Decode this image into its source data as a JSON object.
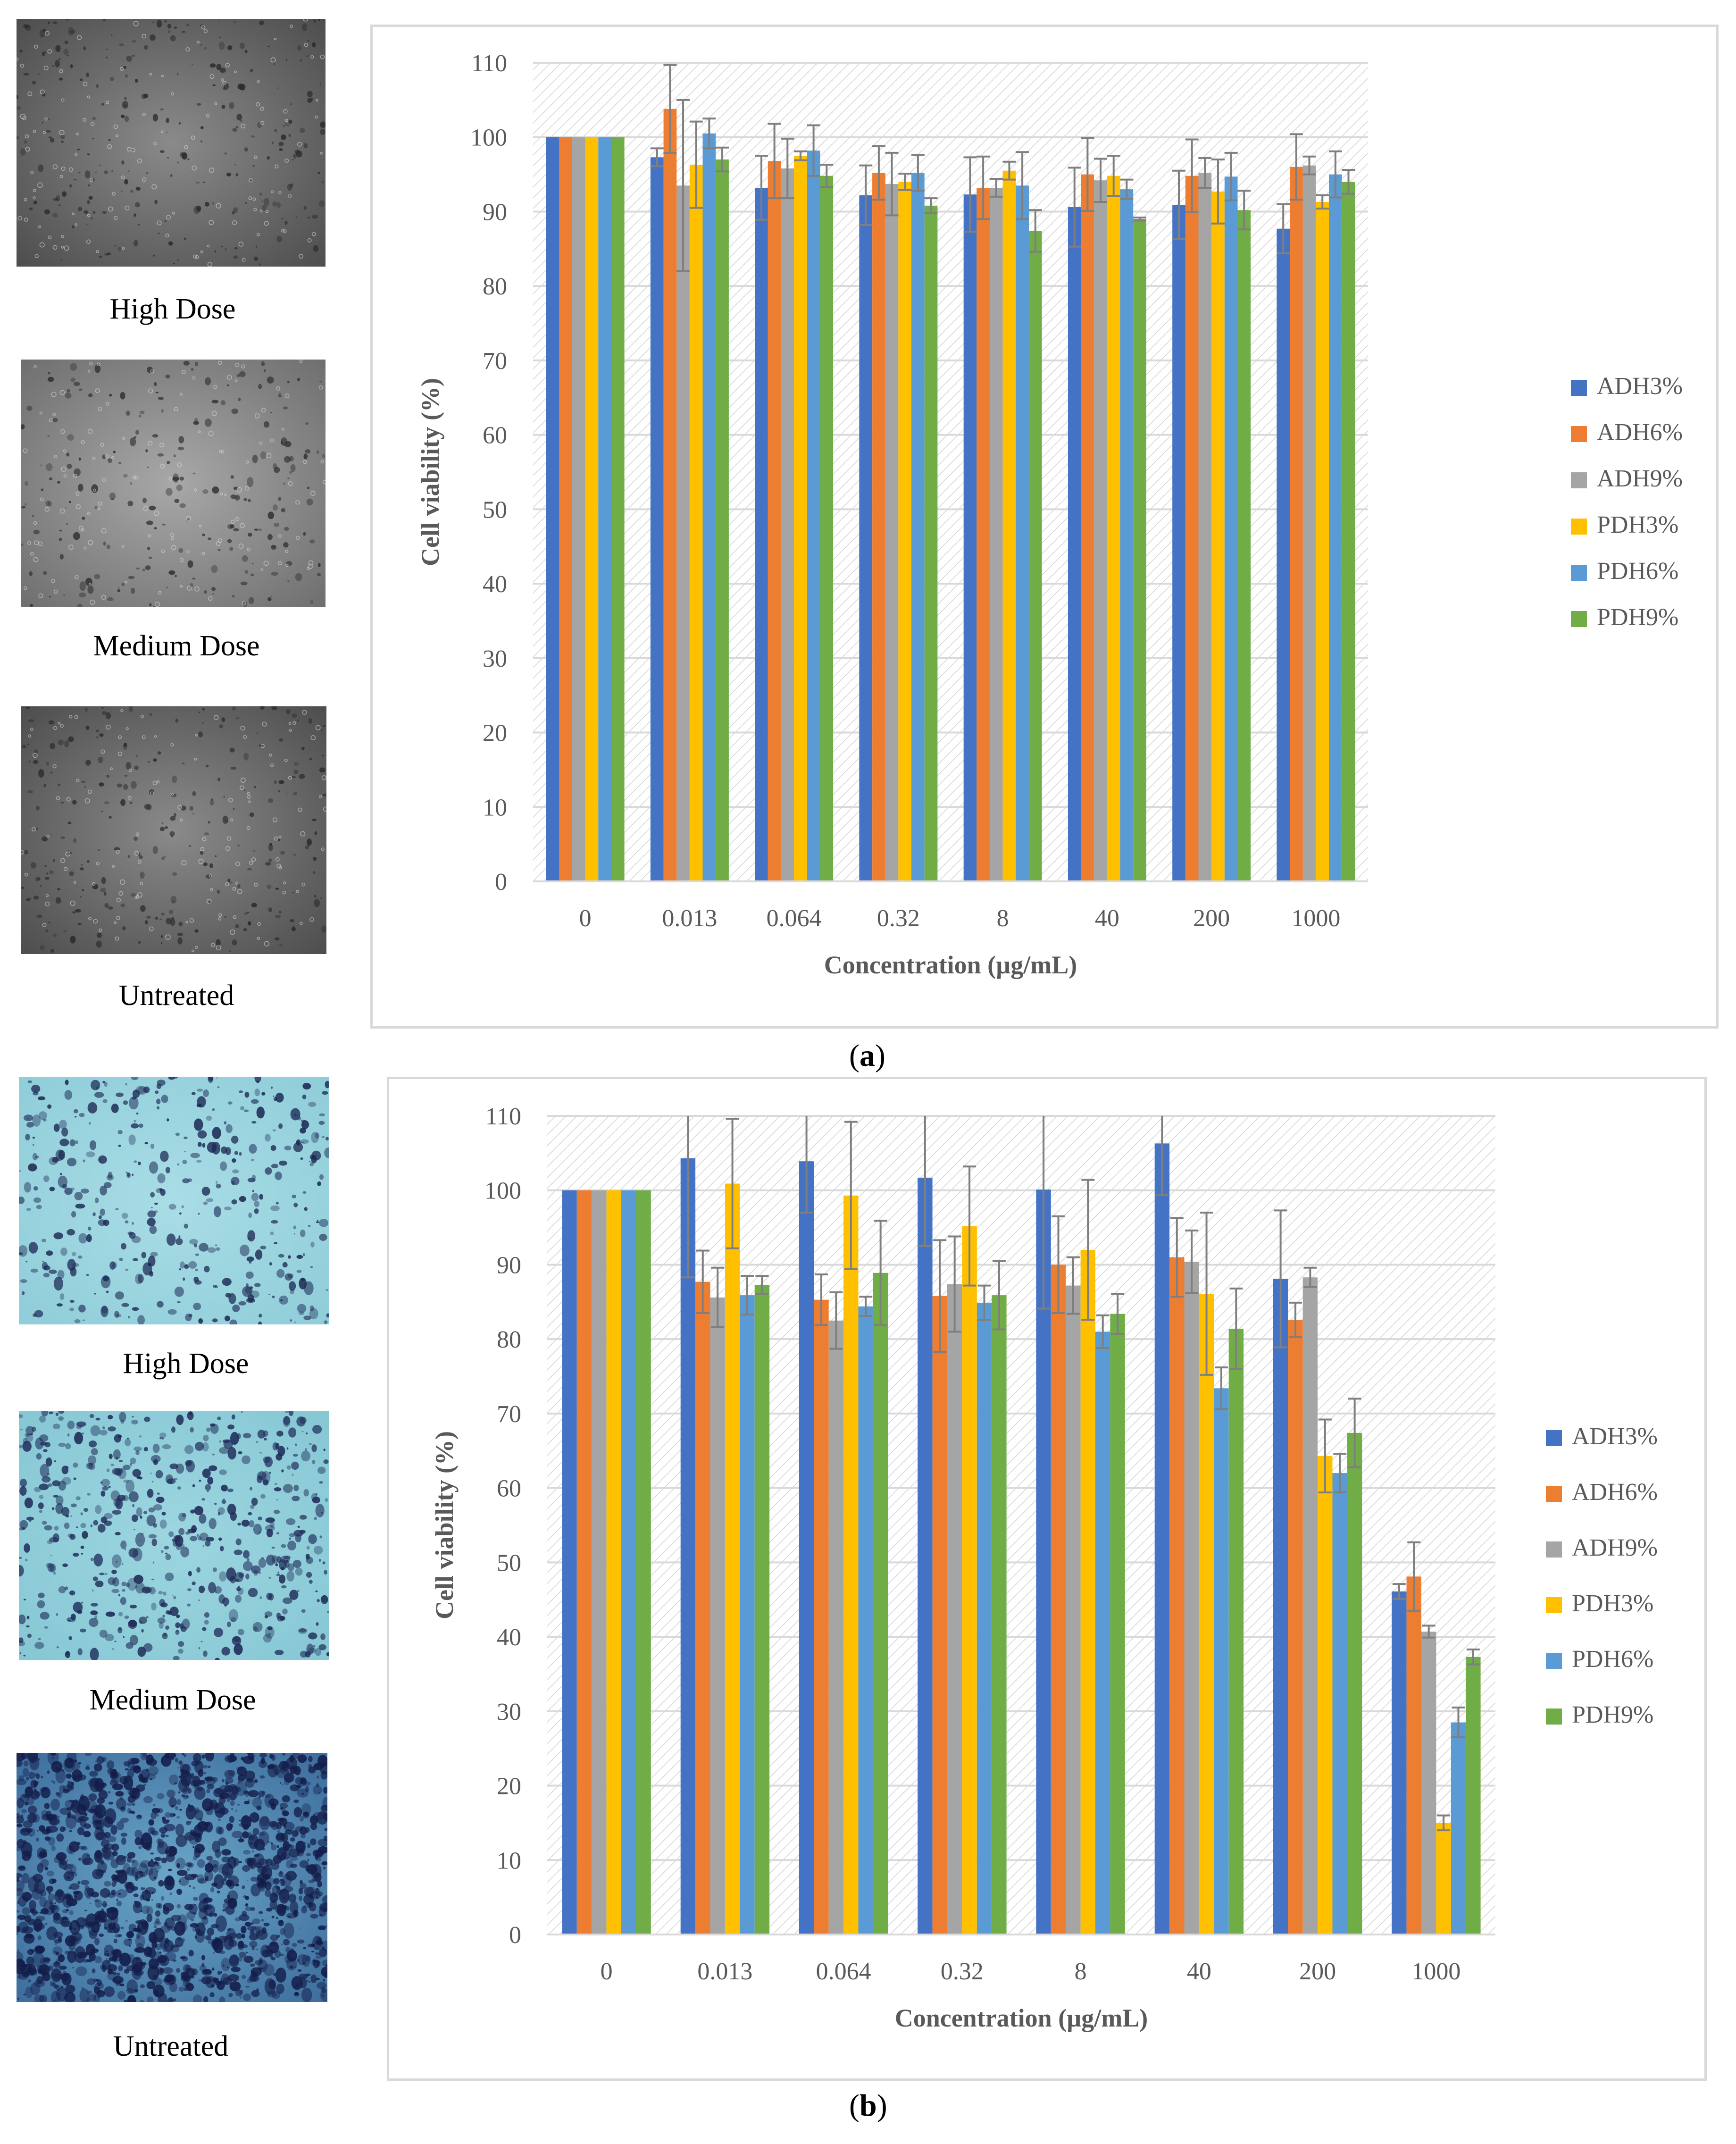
{
  "colors": {
    "ADH3%": "#4472c4",
    "ADH6%": "#ed7d31",
    "ADH9%": "#a5a5a5",
    "PDH3%": "#ffc000",
    "PDH6%": "#5b9bd5",
    "PDH9%": "#70ad47",
    "error_bar": "#7f7f7f",
    "grid": "#d9d9d9"
  },
  "panels": [
    {
      "label_open": "(",
      "label_letter": "a",
      "label_close": ")",
      "images": [
        {
          "caption": "High Dose",
          "style": "gray"
        },
        {
          "caption": "Medium Dose",
          "style": "gray-light"
        },
        {
          "caption": "Untreated",
          "style": "gray"
        }
      ]
    },
    {
      "label_open": "(",
      "label_letter": "b",
      "label_close": ")",
      "images": [
        {
          "caption": "High Dose",
          "style": "blue-light"
        },
        {
          "caption": "Medium Dose",
          "style": "blue-medium"
        },
        {
          "caption": "Untreated",
          "style": "blue-dense"
        }
      ]
    }
  ],
  "chart_data": [
    {
      "type": "bar",
      "title": "",
      "xlabel": "Concentration (µg/mL)",
      "ylabel": "Cell viability (%)",
      "ylim": [
        0,
        110
      ],
      "yticks": [
        0,
        10,
        20,
        30,
        40,
        50,
        60,
        70,
        80,
        90,
        100,
        110
      ],
      "categories": [
        "0",
        "0.013",
        "0.064",
        "0.32",
        "8",
        "40",
        "200",
        "1000"
      ],
      "legend_position": "right",
      "series": [
        {
          "name": "ADH3%",
          "values": [
            100,
            97.3,
            93.2,
            92.2,
            92.3,
            90.6,
            90.9,
            87.7
          ],
          "errors": [
            0,
            1.2,
            4.3,
            4.0,
            5.0,
            5.3,
            4.6,
            3.3
          ]
        },
        {
          "name": "ADH6%",
          "values": [
            100,
            103.8,
            96.8,
            95.2,
            93.2,
            95.0,
            94.8,
            96.0
          ],
          "errors": [
            0,
            5.9,
            5.0,
            3.6,
            4.2,
            4.9,
            4.9,
            4.4
          ]
        },
        {
          "name": "ADH9%",
          "values": [
            100,
            93.5,
            95.8,
            93.7,
            93.2,
            94.2,
            95.2,
            96.2
          ],
          "errors": [
            0,
            11.5,
            4.0,
            4.2,
            1.2,
            2.9,
            2.0,
            1.2
          ]
        },
        {
          "name": "PDH3%",
          "values": [
            100,
            96.3,
            97.5,
            94.0,
            95.5,
            94.8,
            92.7,
            91.3
          ],
          "errors": [
            0,
            5.8,
            0.6,
            1.1,
            1.2,
            2.7,
            4.3,
            0.9
          ]
        },
        {
          "name": "PDH6%",
          "values": [
            100,
            100.5,
            98.2,
            95.2,
            93.5,
            93.0,
            94.7,
            95.0
          ],
          "errors": [
            0,
            2.0,
            3.4,
            2.4,
            4.5,
            1.3,
            3.2,
            3.1
          ]
        },
        {
          "name": "PDH9%",
          "values": [
            100,
            97.0,
            94.8,
            90.8,
            87.4,
            89.0,
            90.2,
            94.0
          ],
          "errors": [
            0,
            1.6,
            1.5,
            1.0,
            2.8,
            0.2,
            2.6,
            1.6
          ]
        }
      ]
    },
    {
      "type": "bar",
      "title": "",
      "xlabel": "Concentration (µg/mL)",
      "ylabel": "Cell viability (%)",
      "ylim": [
        0,
        110
      ],
      "yticks": [
        0,
        10,
        20,
        30,
        40,
        50,
        60,
        70,
        80,
        90,
        100,
        110
      ],
      "categories": [
        "0",
        "0.013",
        "0.064",
        "0.32",
        "8",
        "40",
        "200",
        "1000"
      ],
      "legend_position": "right",
      "series": [
        {
          "name": "ADH3%",
          "values": [
            100,
            104.3,
            103.9,
            101.7,
            100.1,
            106.3,
            88.1,
            46.1
          ],
          "errors": [
            0,
            16.0,
            6.9,
            9.2,
            16.0,
            6.9,
            9.2,
            1.0
          ]
        },
        {
          "name": "ADH6%",
          "values": [
            100,
            87.7,
            85.3,
            85.8,
            90.0,
            91.0,
            82.6,
            48.1
          ],
          "errors": [
            0,
            4.2,
            3.4,
            7.5,
            6.5,
            5.3,
            2.3,
            4.6
          ]
        },
        {
          "name": "ADH9%",
          "values": [
            100,
            85.6,
            82.5,
            87.4,
            87.2,
            90.4,
            88.3,
            40.7
          ],
          "errors": [
            0,
            4.0,
            3.8,
            6.4,
            3.8,
            4.2,
            1.3,
            0.8
          ]
        },
        {
          "name": "PDH3%",
          "values": [
            100,
            100.9,
            99.3,
            95.2,
            92.0,
            86.1,
            64.3,
            15.0
          ],
          "errors": [
            0,
            8.7,
            9.9,
            8.0,
            9.4,
            10.9,
            4.9,
            1.0
          ]
        },
        {
          "name": "PDH6%",
          "values": [
            100,
            85.9,
            84.4,
            84.9,
            81.0,
            73.4,
            62.0,
            28.5
          ],
          "errors": [
            0,
            2.6,
            1.3,
            2.3,
            2.2,
            2.8,
            2.6,
            2.0
          ]
        },
        {
          "name": "PDH9%",
          "values": [
            100,
            87.3,
            88.9,
            85.9,
            83.4,
            81.4,
            67.4,
            37.3
          ],
          "errors": [
            0,
            1.2,
            7.0,
            4.6,
            2.7,
            5.4,
            4.6,
            1.0
          ]
        }
      ]
    }
  ]
}
